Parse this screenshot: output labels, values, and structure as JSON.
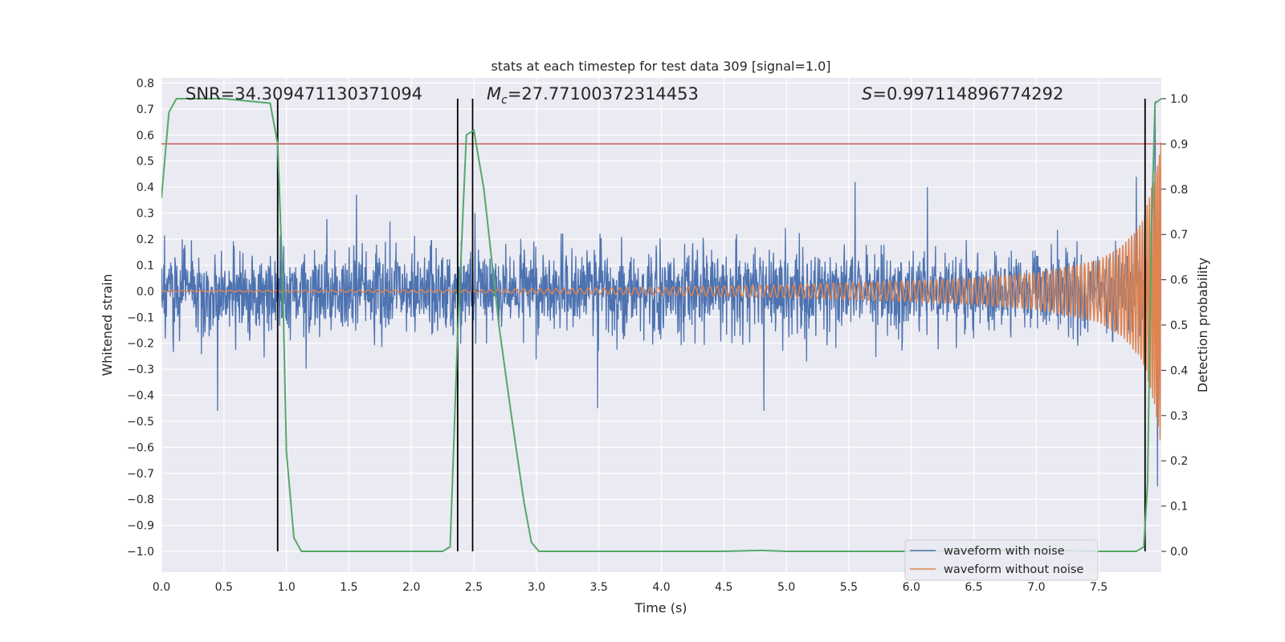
{
  "chart_data": {
    "type": "line",
    "title": "stats at each timestep for test data 309 [signal=1.0]",
    "xlabel": "Time (s)",
    "ylabel": "Whitened strain",
    "y2label": "Detection probability",
    "xlim": [
      0.0,
      8.0
    ],
    "ylim": [
      -1.08,
      0.82
    ],
    "y2lim": [
      -0.046,
      1.046
    ],
    "grid": true,
    "background": "#eaeaf2",
    "x_ticks": [
      "0.0",
      "0.5",
      "1.0",
      "1.5",
      "2.0",
      "2.5",
      "3.0",
      "3.5",
      "4.0",
      "4.5",
      "5.0",
      "5.5",
      "6.0",
      "6.5",
      "7.0",
      "7.5"
    ],
    "y_ticks": [
      "0.8",
      "0.7",
      "0.6",
      "0.5",
      "0.4",
      "0.3",
      "0.2",
      "0.1",
      "0.0",
      "−0.1",
      "−0.2",
      "−0.3",
      "−0.4",
      "−0.5",
      "−0.6",
      "−0.7",
      "−0.8",
      "−0.9",
      "−1.0"
    ],
    "y2_ticks": [
      "1.0",
      "0.9",
      "0.8",
      "0.7",
      "0.6",
      "0.5",
      "0.4",
      "0.3",
      "0.2",
      "0.1",
      "0.0"
    ],
    "annotations": {
      "snr": "SNR=34.309471130371094",
      "mc_symbol": "M",
      "mc_sub": "c",
      "mc_value": "=27.77100372314453",
      "s_symbol": "S",
      "s_value": "=0.997114896774292"
    },
    "legend": {
      "placement": "lower-right",
      "items": [
        {
          "label": "waveform with noise",
          "color": "#4c72b0"
        },
        {
          "label": "waveform without noise",
          "color": "#dd8452"
        }
      ]
    },
    "threshold": {
      "axis": "y2",
      "value": 0.9,
      "color": "#c44e52"
    },
    "vertical_markers_x": [
      0.93,
      2.37,
      2.49,
      7.87
    ],
    "series": [
      {
        "name": "waveform with noise",
        "color": "#4c72b0",
        "axis": "y",
        "spikes": [
          {
            "x": 0.45,
            "y": -0.46
          },
          {
            "x": 1.56,
            "y": 0.37
          },
          {
            "x": 2.51,
            "y": 0.3
          },
          {
            "x": 3.49,
            "y": -0.45
          },
          {
            "x": 4.82,
            "y": -0.46
          },
          {
            "x": 5.55,
            "y": 0.42
          },
          {
            "x": 6.13,
            "y": 0.4
          },
          {
            "x": 7.8,
            "y": 0.44
          },
          {
            "x": 7.95,
            "y": 0.73
          },
          {
            "x": 7.97,
            "y": -0.75
          }
        ]
      },
      {
        "name": "waveform without noise",
        "color": "#dd8452",
        "axis": "y",
        "envelope": [
          {
            "x": 0.0,
            "y": 0.002
          },
          {
            "x": 2.5,
            "y": 0.006
          },
          {
            "x": 4.0,
            "y": 0.015
          },
          {
            "x": 5.0,
            "y": 0.025
          },
          {
            "x": 6.0,
            "y": 0.04
          },
          {
            "x": 6.5,
            "y": 0.05
          },
          {
            "x": 7.0,
            "y": 0.07
          },
          {
            "x": 7.5,
            "y": 0.12
          },
          {
            "x": 7.7,
            "y": 0.18
          },
          {
            "x": 7.85,
            "y": 0.27
          },
          {
            "x": 7.95,
            "y": 0.45
          },
          {
            "x": 8.0,
            "y": 0.6
          }
        ]
      },
      {
        "name": "detection probability",
        "color": "#55a868",
        "axis": "y2",
        "x": [
          0.0,
          0.06,
          0.12,
          0.2,
          0.5,
          0.87,
          0.93,
          0.97,
          1.0,
          1.06,
          1.12,
          1.2,
          1.5,
          2.0,
          2.25,
          2.31,
          2.37,
          2.44,
          2.5,
          2.58,
          2.7,
          2.8,
          2.9,
          2.96,
          3.02,
          3.5,
          4.5,
          4.8,
          5.0,
          6.0,
          7.0,
          7.5,
          7.8,
          7.86,
          7.89,
          7.92,
          7.95,
          8.0
        ],
        "y": [
          0.78,
          0.97,
          1.0,
          1.0,
          1.0,
          0.99,
          0.9,
          0.6,
          0.22,
          0.03,
          0.0,
          0.0,
          0.0,
          0.0,
          0.0,
          0.01,
          0.48,
          0.92,
          0.93,
          0.8,
          0.5,
          0.3,
          0.11,
          0.02,
          0.0,
          0.0,
          0.0,
          0.002,
          0.0,
          0.0,
          0.003,
          0.0,
          0.0,
          0.01,
          0.15,
          0.7,
          0.99,
          1.0
        ]
      }
    ]
  }
}
